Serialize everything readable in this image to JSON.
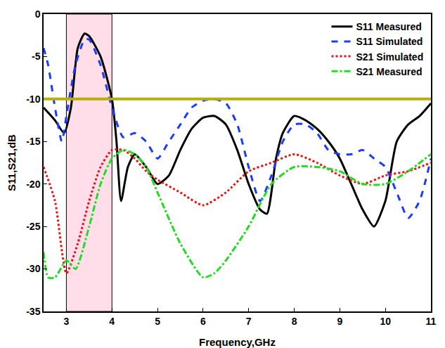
{
  "chart_data": {
    "type": "line",
    "x_label": "Frequency,GHz",
    "y_label": "S11,S21,dB",
    "xlim": [
      2.5,
      11
    ],
    "ylim": [
      -35,
      0
    ],
    "xticks": [
      3,
      4,
      5,
      6,
      7,
      8,
      9,
      10,
      11
    ],
    "yticks": [
      -35,
      -30,
      -25,
      -20,
      -15,
      -10,
      -5,
      0
    ],
    "grid": false,
    "legend": "top-right",
    "shaded_band": [
      3,
      4
    ],
    "threshold": -10,
    "series": [
      {
        "name": "S11 Measured",
        "color": "#000000",
        "line_style": "solid",
        "x": [
          2.5,
          2.75,
          2.95,
          3.1,
          3.25,
          3.4,
          3.5,
          3.75,
          4.0,
          4.1,
          4.2,
          4.35,
          4.5,
          4.75,
          5.0,
          5.25,
          5.5,
          5.75,
          6.0,
          6.25,
          6.5,
          6.75,
          7.0,
          7.25,
          7.4,
          7.6,
          7.75,
          8.0,
          8.25,
          8.5,
          8.75,
          9.0,
          9.25,
          9.5,
          9.75,
          10.0,
          10.25,
          10.5,
          10.75,
          11.0
        ],
        "values": [
          -11,
          -12.5,
          -14,
          -11,
          -4,
          -2.3,
          -2.6,
          -5,
          -10,
          -15,
          -22,
          -18,
          -16.5,
          -18,
          -20,
          -19,
          -16,
          -13.5,
          -12.2,
          -12,
          -13,
          -16,
          -20,
          -23,
          -23.5,
          -17,
          -14,
          -12,
          -12.5,
          -13.5,
          -15,
          -17,
          -20,
          -23,
          -25,
          -22,
          -15,
          -13,
          -12,
          -10.5
        ]
      },
      {
        "name": "S11 Simulated",
        "color": "#1a3cff",
        "line_style": "dash",
        "x": [
          2.5,
          2.6,
          2.75,
          2.9,
          3.0,
          3.2,
          3.4,
          3.5,
          3.75,
          4.0,
          4.25,
          4.5,
          4.75,
          5.0,
          5.25,
          5.5,
          5.75,
          6.0,
          6.25,
          6.5,
          6.75,
          7.0,
          7.25,
          7.5,
          7.75,
          8.0,
          8.25,
          8.5,
          8.75,
          9.0,
          9.25,
          9.5,
          9.75,
          10.0,
          10.25,
          10.5,
          10.75,
          11.0
        ],
        "values": [
          -4,
          -6,
          -11,
          -15,
          -12,
          -6,
          -3,
          -3,
          -6,
          -11,
          -14.5,
          -14,
          -15,
          -17,
          -15,
          -13,
          -11,
          -10.2,
          -10,
          -10.5,
          -13,
          -18,
          -22,
          -19,
          -15,
          -13,
          -13,
          -14,
          -16,
          -16.5,
          -16.5,
          -16,
          -17,
          -18,
          -21,
          -24,
          -22,
          -17
        ]
      },
      {
        "name": "S21 Simulated",
        "color": "#ee1111",
        "line_style": "dot",
        "x": [
          2.5,
          2.75,
          3.0,
          3.25,
          3.5,
          3.75,
          4.0,
          4.25,
          4.5,
          4.75,
          5.0,
          5.5,
          6.0,
          6.5,
          7.0,
          7.5,
          8.0,
          8.5,
          9.0,
          9.5,
          10.0,
          10.5,
          11.0
        ],
        "values": [
          -18,
          -22,
          -30.5,
          -27,
          -22,
          -18,
          -16,
          -16,
          -17,
          -18.5,
          -19.5,
          -21,
          -22.5,
          -21,
          -18.5,
          -17.5,
          -16.5,
          -17.5,
          -19,
          -20,
          -19,
          -18.5,
          -17.5
        ]
      },
      {
        "name": "S21 Measured",
        "color": "#22dd22",
        "line_style": "dashdot",
        "x": [
          2.5,
          2.6,
          2.75,
          3.0,
          3.2,
          3.5,
          3.75,
          4.0,
          4.25,
          4.5,
          4.75,
          5.0,
          5.5,
          6.0,
          6.25,
          6.5,
          7.0,
          7.5,
          8.0,
          8.5,
          9.0,
          9.5,
          10.0,
          10.5,
          11.0
        ],
        "values": [
          -28,
          -31,
          -31,
          -29,
          -30,
          -25,
          -20,
          -17,
          -16,
          -16.5,
          -18,
          -21,
          -27,
          -31,
          -30.5,
          -29,
          -25,
          -20,
          -18,
          -18,
          -18.5,
          -20,
          -20,
          -18.5,
          -16.5
        ]
      }
    ]
  }
}
